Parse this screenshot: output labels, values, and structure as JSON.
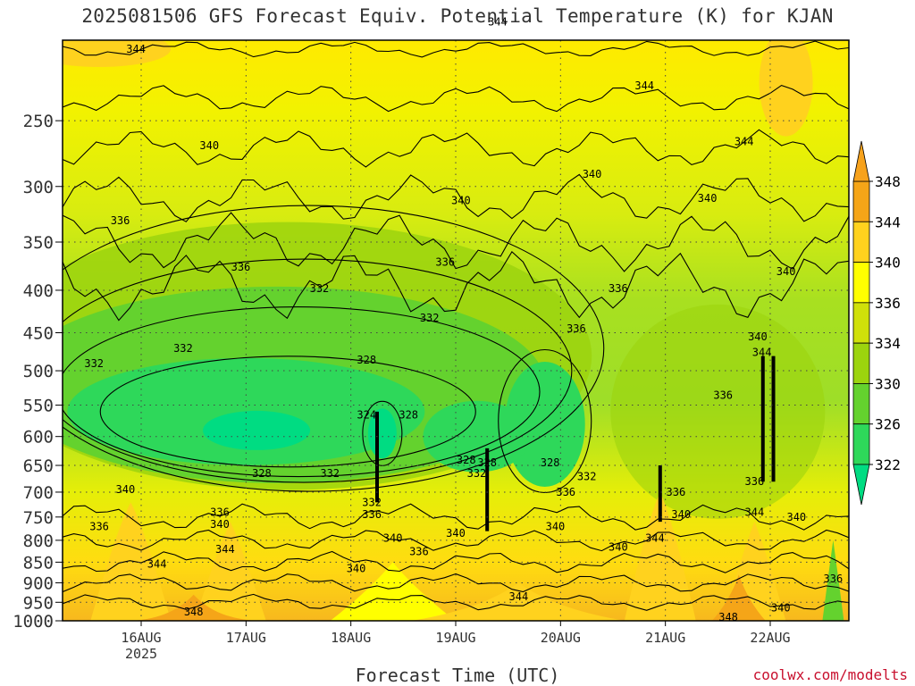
{
  "title": "2025081506 GFS Forecast Equiv. Potential Temperature (K) for KJAN",
  "credit": "coolwx.com/modelts",
  "chart_data": {
    "type": "heatmap",
    "title": "2025081506 GFS Forecast Equiv. Potential Temperature (K) for KJAN",
    "xlabel": "Forecast Time (UTC)",
    "ylabel": "",
    "x_ticks": [
      "16AUG",
      "17AUG",
      "18AUG",
      "19AUG",
      "20AUG",
      "21AUG",
      "22AUG"
    ],
    "x_year": "2025",
    "x_range_days": [
      15.25,
      22.75
    ],
    "y_ticks": [
      250,
      300,
      350,
      400,
      450,
      500,
      550,
      600,
      650,
      700,
      750,
      800,
      850,
      900,
      950,
      1000
    ],
    "y_range_hPa": [
      200,
      1000
    ],
    "y_scale": "log",
    "colorbar": {
      "levels": [
        322,
        326,
        330,
        334,
        336,
        340,
        344,
        348
      ],
      "colors": [
        "#00dc82",
        "#2ed85a",
        "#64d22e",
        "#9cd40e",
        "#d0e00a",
        "#ffff00",
        "#ffd21e",
        "#f5a518"
      ],
      "extend": "both"
    },
    "contour_labels": [
      {
        "t": 15.95,
        "p": 205,
        "v": 344
      },
      {
        "t": 19.4,
        "p": 190,
        "v": 344
      },
      {
        "t": 20.8,
        "p": 227,
        "v": 344
      },
      {
        "t": 21.75,
        "p": 265,
        "v": 344
      },
      {
        "t": 16.65,
        "p": 268,
        "v": 340
      },
      {
        "t": 19.05,
        "p": 312,
        "v": 340
      },
      {
        "t": 20.3,
        "p": 290,
        "v": 340
      },
      {
        "t": 21.4,
        "p": 310,
        "v": 340
      },
      {
        "t": 22.15,
        "p": 380,
        "v": 340
      },
      {
        "t": 15.8,
        "p": 330,
        "v": 336
      },
      {
        "t": 16.95,
        "p": 375,
        "v": 336
      },
      {
        "t": 18.9,
        "p": 370,
        "v": 336
      },
      {
        "t": 20.55,
        "p": 398,
        "v": 336
      },
      {
        "t": 20.15,
        "p": 445,
        "v": 336
      },
      {
        "t": 21.55,
        "p": 535,
        "v": 336
      },
      {
        "t": 15.55,
        "p": 490,
        "v": 332
      },
      {
        "t": 16.4,
        "p": 470,
        "v": 332
      },
      {
        "t": 17.7,
        "p": 398,
        "v": 332
      },
      {
        "t": 18.75,
        "p": 432,
        "v": 332
      },
      {
        "t": 17.8,
        "p": 665,
        "v": 332
      },
      {
        "t": 18.15,
        "p": 485,
        "v": 328
      },
      {
        "t": 18.55,
        "p": 565,
        "v": 328
      },
      {
        "t": 18.15,
        "p": 565,
        "v": 324
      },
      {
        "t": 17.15,
        "p": 665,
        "v": 328
      },
      {
        "t": 19.1,
        "p": 640,
        "v": 328
      },
      {
        "t": 19.3,
        "p": 645,
        "v": 328
      },
      {
        "t": 19.9,
        "p": 645,
        "v": 328
      },
      {
        "t": 18.2,
        "p": 720,
        "v": 332
      },
      {
        "t": 18.2,
        "p": 745,
        "v": 336
      },
      {
        "t": 19.2,
        "p": 665,
        "v": 332
      },
      {
        "t": 20.25,
        "p": 670,
        "v": 332
      },
      {
        "t": 20.05,
        "p": 700,
        "v": 336
      },
      {
        "t": 15.85,
        "p": 695,
        "v": 340
      },
      {
        "t": 15.6,
        "p": 770,
        "v": 336
      },
      {
        "t": 16.75,
        "p": 740,
        "v": 336
      },
      {
        "t": 16.75,
        "p": 765,
        "v": 340
      },
      {
        "t": 16.8,
        "p": 820,
        "v": 344
      },
      {
        "t": 16.15,
        "p": 855,
        "v": 344
      },
      {
        "t": 18.4,
        "p": 795,
        "v": 340
      },
      {
        "t": 18.05,
        "p": 865,
        "v": 340
      },
      {
        "t": 19.0,
        "p": 785,
        "v": 340
      },
      {
        "t": 18.65,
        "p": 825,
        "v": 336
      },
      {
        "t": 19.95,
        "p": 770,
        "v": 340
      },
      {
        "t": 19.6,
        "p": 935,
        "v": 344
      },
      {
        "t": 20.55,
        "p": 815,
        "v": 340
      },
      {
        "t": 21.15,
        "p": 745,
        "v": 340
      },
      {
        "t": 20.9,
        "p": 795,
        "v": 344
      },
      {
        "t": 21.1,
        "p": 700,
        "v": 336
      },
      {
        "t": 21.85,
        "p": 680,
        "v": 336
      },
      {
        "t": 21.85,
        "p": 740,
        "v": 344
      },
      {
        "t": 21.88,
        "p": 455,
        "v": 340
      },
      {
        "t": 21.92,
        "p": 475,
        "v": 344
      },
      {
        "t": 22.25,
        "p": 750,
        "v": 340
      },
      {
        "t": 22.6,
        "p": 890,
        "v": 336
      },
      {
        "t": 22.1,
        "p": 965,
        "v": 340
      },
      {
        "t": 21.6,
        "p": 990,
        "v": 348
      },
      {
        "t": 16.5,
        "p": 975,
        "v": 348
      }
    ]
  }
}
